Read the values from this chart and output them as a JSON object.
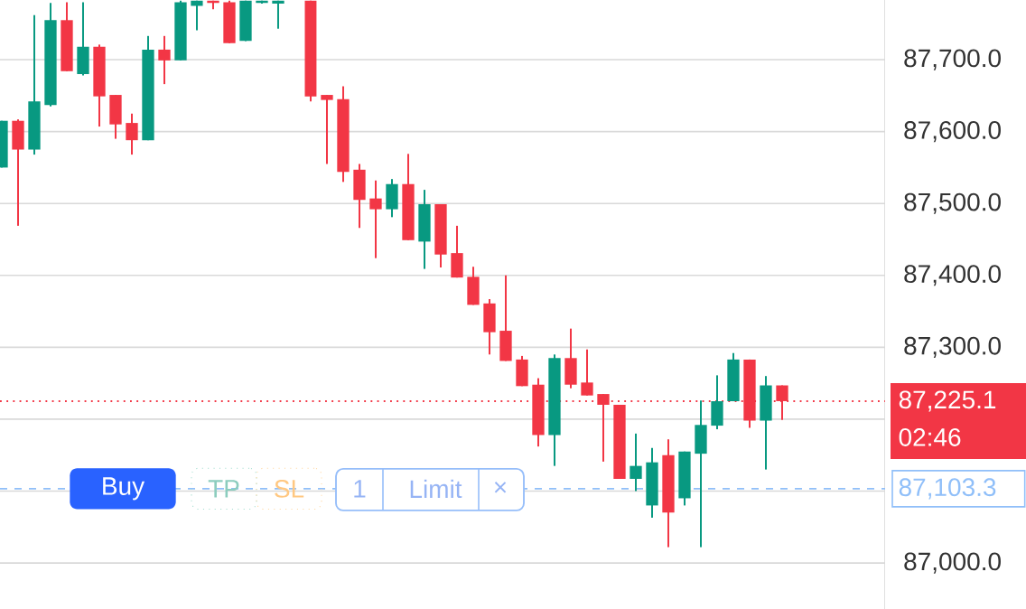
{
  "chart_data": {
    "type": "candlestick",
    "categories": [
      null,
      null,
      null,
      null,
      null,
      null,
      null,
      null,
      null,
      null,
      null,
      null,
      null,
      null,
      null,
      null,
      null,
      null,
      null,
      null,
      null,
      null,
      null,
      null,
      null,
      null,
      null,
      null,
      null,
      null,
      null,
      null,
      null,
      null,
      null,
      null,
      null,
      null,
      null,
      null,
      null,
      null,
      null,
      null,
      null,
      null,
      null,
      null,
      null
    ],
    "ohlc": [
      [
        87550,
        87615,
        87550,
        87615
      ],
      [
        87615,
        87617,
        87469,
        87575
      ],
      [
        87575,
        87762,
        87568,
        87642
      ],
      [
        87637,
        87779,
        87635,
        87755
      ],
      [
        87755,
        87780,
        87684,
        87684
      ],
      [
        87680,
        87780,
        87678,
        87718
      ],
      [
        87718,
        87721,
        87607,
        87649
      ],
      [
        87651,
        87651,
        87590,
        87610
      ],
      [
        87612,
        87625,
        87568,
        87588
      ],
      [
        87588,
        87733,
        87588,
        87714
      ],
      [
        87714,
        87733,
        87666,
        87699
      ],
      [
        87699,
        87782,
        87699,
        87780
      ],
      [
        87775,
        87782,
        87741,
        87782
      ],
      [
        87782,
        87782,
        87770,
        87779
      ],
      [
        87780,
        87782,
        87723,
        87723
      ],
      [
        87726,
        87782,
        87726,
        87782
      ],
      [
        87779,
        87782,
        87778,
        87782
      ],
      [
        87778,
        87782,
        87743,
        87782
      ],
      null,
      [
        87782,
        87782,
        87642,
        87649
      ],
      [
        87651,
        87651,
        87555,
        87644
      ],
      [
        87645,
        87663,
        87530,
        87544
      ],
      [
        87547,
        87555,
        87466,
        87505
      ],
      [
        87507,
        87532,
        87424,
        87492
      ],
      [
        87492,
        87534,
        87481,
        87527
      ],
      [
        87527,
        87569,
        87449,
        87449
      ],
      [
        87447,
        87519,
        87409,
        87499
      ],
      [
        87499,
        87499,
        87411,
        87429
      ],
      [
        87431,
        87469,
        87397,
        87397
      ],
      [
        87398,
        87412,
        87359,
        87359
      ],
      [
        87361,
        87367,
        87290,
        87321
      ],
      [
        87323,
        87400,
        87281,
        87281
      ],
      [
        87283,
        87288,
        87246,
        87246
      ],
      [
        87248,
        87257,
        87162,
        87178
      ],
      [
        87178,
        87290,
        87135,
        87285
      ],
      [
        87285,
        87326,
        87243,
        87248
      ],
      [
        87251,
        87297,
        87233,
        87233
      ],
      [
        87235,
        87235,
        87141,
        87220
      ],
      [
        87220,
        87220,
        87117,
        87117
      ],
      [
        87117,
        87180,
        87100,
        87135
      ],
      [
        87080,
        87160,
        87063,
        87140
      ],
      [
        87150,
        87172,
        87022,
        87070
      ],
      [
        87090,
        87155,
        87080,
        87155
      ],
      [
        87152,
        87226,
        87022,
        87192
      ],
      [
        87191,
        87261,
        87186,
        87225
      ],
      [
        87225,
        87292,
        87225,
        87283
      ],
      [
        87283,
        87283,
        87188,
        87198
      ],
      [
        87198,
        87260,
        87130,
        87247
      ],
      [
        87247,
        87247,
        87199,
        87225.1
      ]
    ],
    "colors": [
      "#089981",
      "#f23645",
      "#089981",
      "#089981",
      "#f23645",
      "#089981",
      "#f23645",
      "#f23645",
      "#f23645",
      "#089981",
      "#f23645",
      "#089981",
      "#089981",
      "#f23645",
      "#f23645",
      "#089981",
      "#089981",
      "#089981",
      null,
      "#f23645",
      "#f23645",
      "#f23645",
      "#f23645",
      "#f23645",
      "#089981",
      "#f23645",
      "#089981",
      "#f23645",
      "#f23645",
      "#f23645",
      "#f23645",
      "#f23645",
      "#f23645",
      "#f23645",
      "#089981",
      "#f23645",
      "#f23645",
      "#f23645",
      "#f23645",
      "#089981",
      "#089981",
      "#f23645",
      "#089981",
      "#089981",
      "#089981",
      "#089981",
      "#f23645",
      "#089981",
      "#f23645"
    ],
    "ylim": [
      86936,
      87783
    ],
    "yticks": [
      {
        "value": 87000,
        "label": "87,000.0"
      },
      {
        "value": 87100,
        "label": null
      },
      {
        "value": 87200,
        "label": null
      },
      {
        "value": 87300,
        "label": "87,300.0"
      },
      {
        "value": 87400,
        "label": "87,400.0"
      },
      {
        "value": 87500,
        "label": "87,500.0"
      },
      {
        "value": 87600,
        "label": "87,600.0"
      },
      {
        "value": 87700,
        "label": "87,700.0"
      }
    ],
    "grid": "y",
    "tick_labels": "y",
    "ref_lines": [
      {
        "axis": "y",
        "value": 87225.1,
        "label": "87,225.1",
        "color": "#f23645",
        "line_style": "dotted"
      },
      {
        "axis": "y",
        "value": 87103.3,
        "label": "87,103.3",
        "color": "#90bff9",
        "line_style": "dashed"
      }
    ],
    "annotations": [
      "02:46",
      "Buy",
      "TP",
      "SL",
      "1",
      "Limit",
      "×"
    ]
  }
}
